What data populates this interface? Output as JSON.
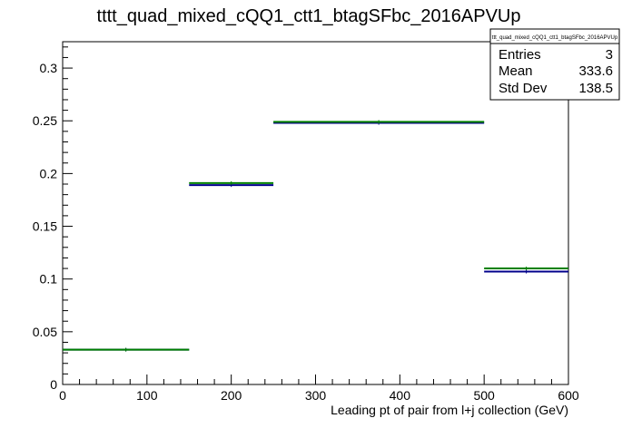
{
  "chart_data": {
    "type": "step",
    "title": "tttt_quad_mixed_cQQ1_ctt1_btagSFbc_2016APVUp",
    "xlabel": "Leading pt of pair from l+j collection (GeV)",
    "ylabel": "",
    "xlim": [
      0,
      600
    ],
    "ylim": [
      0,
      0.325
    ],
    "x_ticks": [
      0,
      100,
      200,
      300,
      400,
      500,
      600
    ],
    "x_tick_labels": [
      "0",
      "100",
      "200",
      "300",
      "400",
      "500",
      "600"
    ],
    "y_ticks": [
      0,
      0.05,
      0.1,
      0.15,
      0.2,
      0.25,
      0.3
    ],
    "y_tick_labels": [
      "0",
      "0.05",
      "0.1",
      "0.15",
      "0.2",
      "0.25",
      "0.3"
    ],
    "grid": false,
    "bins": [
      {
        "lo": 0,
        "hi": 150
      },
      {
        "lo": 150,
        "hi": 250
      },
      {
        "lo": 250,
        "hi": 500
      },
      {
        "lo": 500,
        "hi": 600
      }
    ],
    "series": [
      {
        "color": "#00008b",
        "values": [
          0.033,
          0.189,
          0.248,
          0.107
        ]
      },
      {
        "color": "#008000",
        "values": [
          0.033,
          0.191,
          0.249,
          0.11
        ]
      }
    ],
    "stats_box": {
      "name": "ttt_quad_mixed_cQQ1_ctt1_btagSFbc_2016APVUp",
      "rows": [
        {
          "label": "Entries",
          "value": "3"
        },
        {
          "label": "Mean",
          "value": "333.6"
        },
        {
          "label": "Std Dev",
          "value": "138.5"
        }
      ]
    }
  }
}
